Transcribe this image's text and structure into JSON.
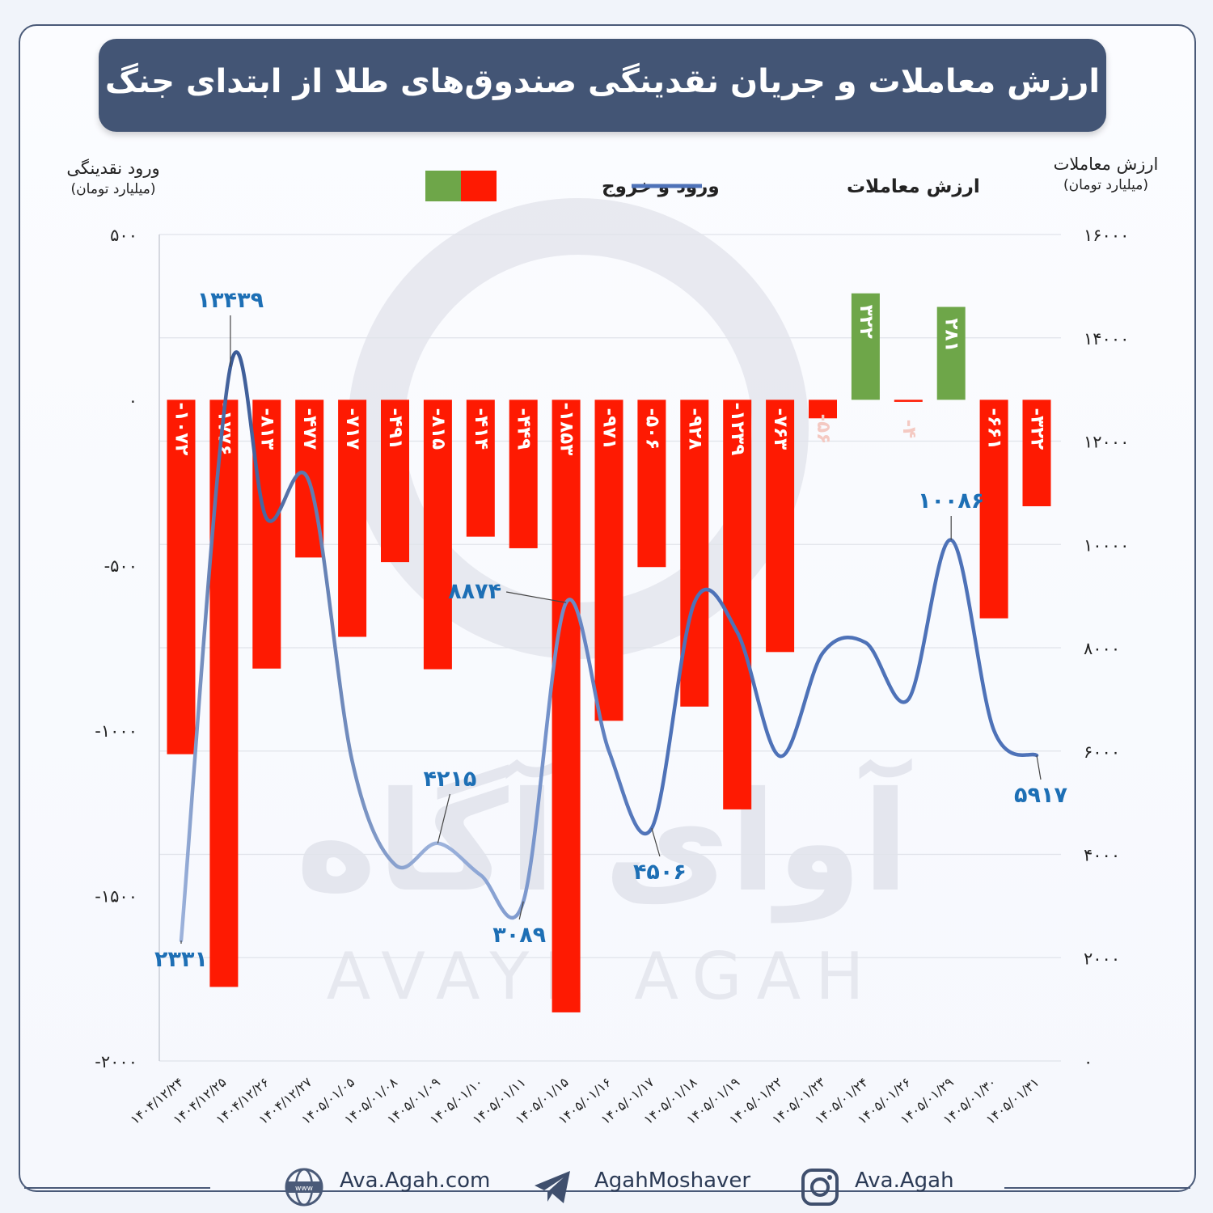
{
  "title": "ارزش معاملات و جریان نقدینگی صندوق‌های طلا از ابتدای جنگ",
  "left_axis": {
    "title": "ورود نقدینگی",
    "unit": "(میلیارد تومان)"
  },
  "right_axis": {
    "title": "ارزش معاملات",
    "unit": "(میلیارد تومان)"
  },
  "legend": {
    "line_label": "ارزش معاملات",
    "bar_label": "ورود و خروج"
  },
  "colors": {
    "positive": "#6ea649",
    "negative": "#fe1a02",
    "line": "#4e72b8",
    "line_light": "#9db3dc",
    "callout": "#1d6fb5"
  },
  "chart_data": {
    "type": "bar+line",
    "categories": [
      "۱۴۰۴/۱۲/۲۴",
      "۱۴۰۴/۱۲/۲۵",
      "۱۴۰۴/۱۲/۲۶",
      "۱۴۰۴/۱۲/۲۷",
      "۱۴۰۵/۰۱/۰۵",
      "۱۴۰۵/۰۱/۰۸",
      "۱۴۰۵/۰۱/۰۹",
      "۱۴۰۵/۰۱/۱۰",
      "۱۴۰۵/۰۱/۱۱",
      "۱۴۰۵/۰۱/۱۵",
      "۱۴۰۵/۰۱/۱۶",
      "۱۴۰۵/۰۱/۱۷",
      "۱۴۰۵/۰۱/۱۸",
      "۱۴۰۵/۰۱/۱۹",
      "۱۴۰۵/۰۱/۲۲",
      "۱۴۰۵/۰۱/۲۳",
      "۱۴۰۵/۰۱/۲۴",
      "۱۴۰۵/۰۱/۲۶",
      "۱۴۰۵/۰۱/۲۹",
      "۱۴۰۵/۰۱/۳۰",
      "۱۴۰۵/۰۱/۳۱"
    ],
    "bar_series": {
      "name": "ورود و خروج",
      "values": [
        -1072,
        -1776,
        -813,
        -477,
        -717,
        -491,
        -815,
        -414,
        -449,
        -1853,
        -971,
        -506,
        -928,
        -1239,
        -763,
        -56,
        322,
        -4,
        281,
        -661,
        -322
      ],
      "labels": [
        "-۱۰۷۲",
        "-۱۷۷۶",
        "-۸۱۳",
        "-۴۷۷",
        "-۷۱۷",
        "-۴۹۱",
        "-۸۱۵",
        "-۴۱۴",
        "-۴۴۹",
        "-۱۸۵۳",
        "-۹۷۱",
        "-۵۰۶",
        "-۹۲۸",
        "-۱۲۳۹",
        "-۷۶۳",
        "-۵۶",
        "۳۲۲",
        "-۴",
        "۲۸۱",
        "-۶۶۱",
        "-۳۲۲"
      ]
    },
    "line_series": {
      "name": "ارزش معاملات",
      "values": [
        2331,
        13439,
        10500,
        11200,
        5800,
        3800,
        4215,
        3600,
        3089,
        8874,
        6000,
        4506,
        8880,
        8300,
        5900,
        7900,
        8100,
        7000,
        10086,
        6400,
        5917
      ]
    },
    "callouts": [
      {
        "index": 0,
        "text": "۲۳۳۱"
      },
      {
        "index": 1,
        "text": "۱۳۴۳۹"
      },
      {
        "index": 6,
        "text": "۴۲۱۵"
      },
      {
        "index": 8,
        "text": "۳۰۸۹"
      },
      {
        "index": 9,
        "text": "۸۸۷۴"
      },
      {
        "index": 11,
        "text": "۴۵۰۶"
      },
      {
        "index": 18,
        "text": "۱۰۰۸۶"
      },
      {
        "index": 20,
        "text": "۵۹۱۷"
      }
    ],
    "left_ylim": [
      -2000,
      500
    ],
    "left_ticks": [
      {
        "value": 500,
        "label": "۵۰۰"
      },
      {
        "value": 0,
        "label": "۰"
      },
      {
        "value": -500,
        "label": "-۵۰۰"
      },
      {
        "value": -1000,
        "label": "-۱۰۰۰"
      },
      {
        "value": -1500,
        "label": "-۱۵۰۰"
      },
      {
        "value": -2000,
        "label": "-۲۰۰۰"
      }
    ],
    "right_ylim": [
      0,
      16000
    ],
    "right_ticks": [
      {
        "value": 16000,
        "label": "۱۶۰۰۰"
      },
      {
        "value": 14000,
        "label": "۱۴۰۰۰"
      },
      {
        "value": 12000,
        "label": "۱۲۰۰۰"
      },
      {
        "value": 10000,
        "label": "۱۰۰۰۰"
      },
      {
        "value": 8000,
        "label": "۸۰۰۰"
      },
      {
        "value": 6000,
        "label": "۶۰۰۰"
      },
      {
        "value": 4000,
        "label": "۴۰۰۰"
      },
      {
        "value": 2000,
        "label": "۲۰۰۰"
      },
      {
        "value": 0,
        "label": "۰"
      }
    ],
    "grid": true
  },
  "watermark": {
    "fa": "آوای آگاه",
    "en": "AVAYE AGAH"
  },
  "footer": {
    "website": "Ava.Agah.com",
    "telegram": "AgahMoshaver",
    "instagram": "Ava.Agah"
  }
}
